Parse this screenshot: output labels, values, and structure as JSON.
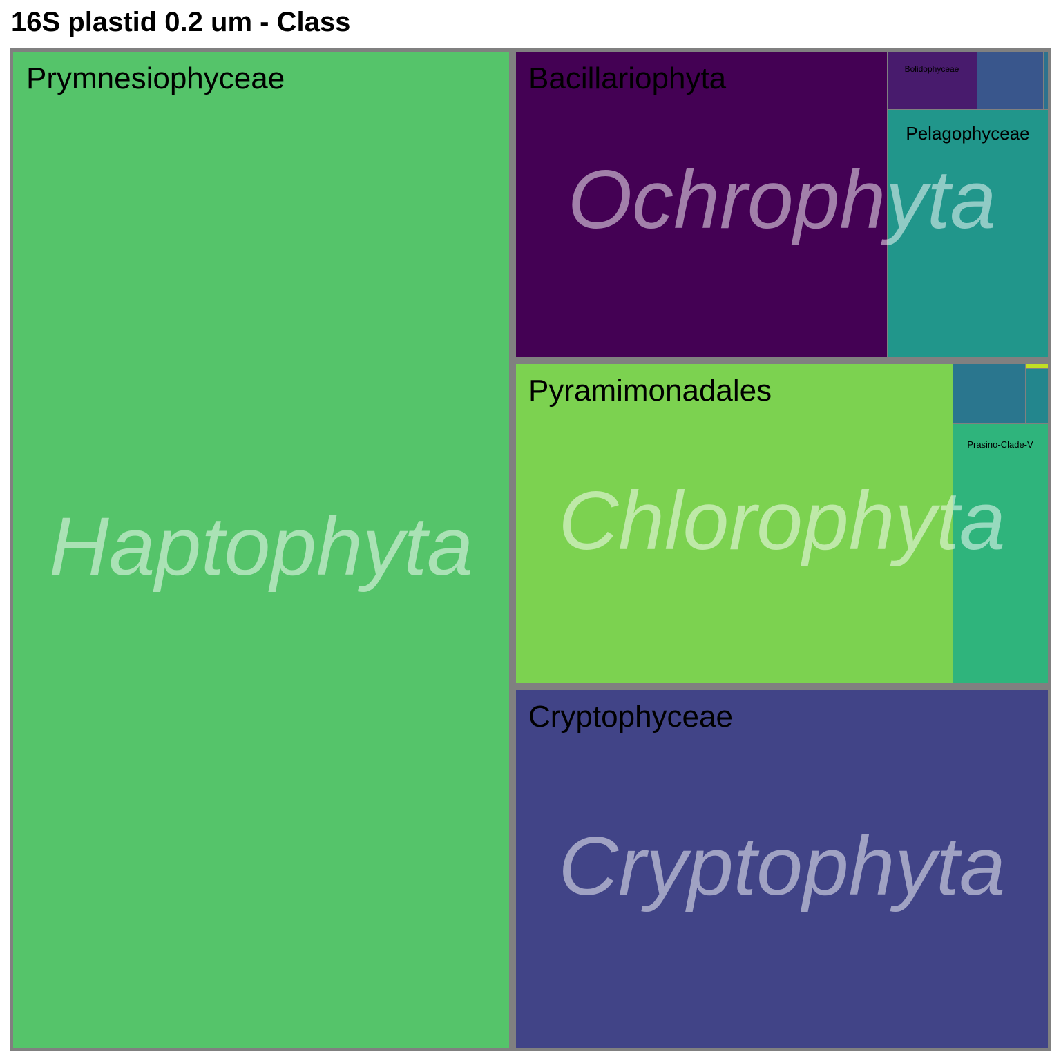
{
  "chart_data": {
    "type": "treemap",
    "title": "16S plastid 0.2 um - Class",
    "groups": [
      {
        "name": "Haptophyta",
        "children": [
          {
            "name": "Prymnesiophyceae",
            "color": "#55c46a",
            "label_visible": true
          }
        ]
      },
      {
        "name": "Ochrophyta",
        "children": [
          {
            "name": "Bacillariophyta",
            "color": "#440154",
            "label_visible": true
          },
          {
            "name": "Bolidophyceae",
            "color": "#481b6d",
            "label_visible": true
          },
          {
            "name": "",
            "color": "#39568c",
            "label_visible": false
          },
          {
            "name": "",
            "color": "#2c728e",
            "label_visible": false
          },
          {
            "name": "Pelagophyceae",
            "color": "#21968b",
            "label_visible": true
          }
        ]
      },
      {
        "name": "Chlorophyta",
        "children": [
          {
            "name": "Pyramimonadales",
            "color": "#7cd250",
            "label_visible": true
          },
          {
            "name": "",
            "color": "#2a768e",
            "label_visible": false
          },
          {
            "name": "",
            "color": "#23868d",
            "label_visible": false
          },
          {
            "name": "",
            "color": "#c2df23",
            "label_visible": false
          },
          {
            "name": "Prasino-Clade-V",
            "color": "#2fb47c",
            "label_visible": true
          }
        ]
      },
      {
        "name": "Cryptophyta",
        "children": [
          {
            "name": "Cryptophyceae",
            "color": "#414487",
            "label_visible": true
          }
        ]
      }
    ]
  }
}
